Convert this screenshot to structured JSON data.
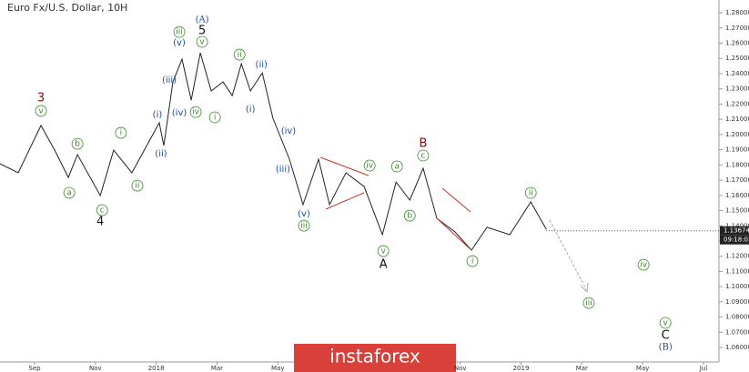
{
  "chart_data": {
    "type": "line",
    "title": "Euro Fx/U.S. Dollar, 10H",
    "color": "#222222",
    "x": [
      -1.14,
      -0.54,
      0.21,
      0.66,
      1.11,
      1.41,
      2.16,
      2.6,
      3.2,
      4.1,
      4.25,
      4.55,
      4.85,
      5.15,
      5.45,
      5.81,
      6.2,
      6.5,
      6.8,
      7.1,
      7.49,
      7.84,
      8.38,
      8.83,
      9.34,
      9.7,
      10.24,
      10.84,
      11.44,
      11.89,
      12.34,
      12.78,
      13.23,
      13.83,
      14.37,
      14.88,
      15.63,
      16.32,
      16.83
    ],
    "values": [
      1.1808,
      1.1748,
      1.2059,
      1.1897,
      1.1718,
      1.1868,
      1.1599,
      1.1897,
      1.1748,
      1.2077,
      1.1927,
      1.2346,
      1.2495,
      1.2226,
      1.2537,
      1.2286,
      1.2346,
      1.2256,
      1.2465,
      1.2286,
      1.2405,
      1.2107,
      1.1838,
      1.1539,
      1.1838,
      1.1539,
      1.1748,
      1.1658,
      1.1342,
      1.1688,
      1.1569,
      1.1778,
      1.1449,
      1.136,
      1.124,
      1.139,
      1.1342,
      1.1557,
      1.1377
    ],
    "last_price": 1.13674,
    "countdown": "09:18:03",
    "watermark": "instaforex",
    "xlim": [
      -1.138,
      22.51
    ],
    "ylim": [
      1.0505,
      1.2884
    ],
    "xticks": [
      {
        "value": 0,
        "label": "Sep"
      },
      {
        "value": 2,
        "label": "Nov"
      },
      {
        "value": 4,
        "label": "2018"
      },
      {
        "value": 6,
        "label": "Mar"
      },
      {
        "value": 8,
        "label": "May"
      },
      {
        "value": 14,
        "label": "Nov"
      },
      {
        "value": 16,
        "label": "2019"
      },
      {
        "value": 18,
        "label": "Mar"
      },
      {
        "value": 20,
        "label": "May"
      },
      {
        "value": 22,
        "label": "Jul"
      }
    ],
    "yticks": [
      {
        "value": 1.06,
        "label": "1.06000"
      },
      {
        "value": 1.07,
        "label": "1.07000"
      },
      {
        "value": 1.08,
        "label": "1.08000"
      },
      {
        "value": 1.09,
        "label": "1.09000"
      },
      {
        "value": 1.1,
        "label": "1.10000"
      },
      {
        "value": 1.11,
        "label": "1.11000"
      },
      {
        "value": 1.12,
        "label": "1.12000"
      },
      {
        "value": 1.13,
        "label": "1.13000"
      },
      {
        "value": 1.14,
        "label": "1.14000"
      },
      {
        "value": 1.15,
        "label": "1.15000"
      },
      {
        "value": 1.16,
        "label": "1.16000"
      },
      {
        "value": 1.17,
        "label": "1.17000"
      },
      {
        "value": 1.18,
        "label": "1.18000"
      },
      {
        "value": 1.19,
        "label": "1.19000"
      },
      {
        "value": 1.2,
        "label": "1.20000"
      },
      {
        "value": 1.21,
        "label": "1.21000"
      },
      {
        "value": 1.22,
        "label": "1.22000"
      },
      {
        "value": 1.23,
        "label": "1.23000"
      },
      {
        "value": 1.24,
        "label": "1.24000"
      },
      {
        "value": 1.25,
        "label": "1.25000"
      },
      {
        "value": 1.26,
        "label": "1.26000"
      },
      {
        "value": 1.27,
        "label": "1.27000"
      },
      {
        "value": 1.28,
        "label": "1.28000"
      }
    ],
    "annotations": [
      {
        "text": "3",
        "x": 0.21,
        "y": 1.2238,
        "color": "#7a1010"
      },
      {
        "text": "v",
        "x": 0.21,
        "y": 1.2155,
        "color": "#3a8a2a"
      },
      {
        "text": "b",
        "x": 1.41,
        "y": 1.1939,
        "color": "#3a8a2a"
      },
      {
        "text": "a",
        "x": 1.14,
        "y": 1.1617,
        "color": "#3a8a2a"
      },
      {
        "text": "c",
        "x": 2.22,
        "y": 1.1503,
        "color": "#3a8a2a"
      },
      {
        "text": "4",
        "x": 2.16,
        "y": 1.1425,
        "color": "#111111"
      },
      {
        "text": "i",
        "x": 2.84,
        "y": 1.2011,
        "color": "#3a8a2a"
      },
      {
        "text": "ii",
        "x": 3.38,
        "y": 1.1664,
        "color": "#3a8a2a"
      },
      {
        "text": "(i)",
        "x": 4.04,
        "y": 1.2131,
        "color": "#1a4fa0"
      },
      {
        "text": "(ii)",
        "x": 4.16,
        "y": 1.1874,
        "color": "#1a4fa0"
      },
      {
        "text": "(iii)",
        "x": 4.43,
        "y": 1.2358,
        "color": "#1a4fa0"
      },
      {
        "text": "(iv)",
        "x": 4.76,
        "y": 1.2143,
        "color": "#1a4fa0"
      },
      {
        "text": "(v)",
        "x": 4.76,
        "y": 1.2603,
        "color": "#1a4fa0"
      },
      {
        "text": "iii",
        "x": 4.76,
        "y": 1.2674,
        "color": "#3a8a2a"
      },
      {
        "text": "(A)",
        "x": 5.51,
        "y": 1.2752,
        "color": "#1a4fa0"
      },
      {
        "text": "5",
        "x": 5.51,
        "y": 1.268,
        "color": "#111111"
      },
      {
        "text": "v",
        "x": 5.51,
        "y": 1.2609,
        "color": "#3a8a2a"
      },
      {
        "text": "iv",
        "x": 5.3,
        "y": 1.2148,
        "color": "#3a8a2a"
      },
      {
        "text": "i",
        "x": 5.93,
        "y": 1.2113,
        "color": "#3a8a2a"
      },
      {
        "text": "ii",
        "x": 6.74,
        "y": 1.2525,
        "color": "#3a8a2a"
      },
      {
        "text": "(ii)",
        "x": 7.46,
        "y": 1.2459,
        "color": "#1a4fa0"
      },
      {
        "text": "(i)",
        "x": 7.1,
        "y": 1.2166,
        "color": "#1a4fa0"
      },
      {
        "text": "(iv)",
        "x": 8.35,
        "y": 1.2023,
        "color": "#1a4fa0"
      },
      {
        "text": "(iii)",
        "x": 8.17,
        "y": 1.1772,
        "color": "#1a4fa0"
      },
      {
        "text": "(v)",
        "x": 8.86,
        "y": 1.1479,
        "color": "#1a4fa0"
      },
      {
        "text": "iii",
        "x": 8.86,
        "y": 1.1401,
        "color": "#3a8a2a"
      },
      {
        "text": "iv",
        "x": 11.02,
        "y": 1.1796,
        "color": "#3a8a2a"
      },
      {
        "text": "a",
        "x": 11.92,
        "y": 1.179,
        "color": "#3a8a2a"
      },
      {
        "text": "b",
        "x": 12.34,
        "y": 1.1467,
        "color": "#3a8a2a"
      },
      {
        "text": "v",
        "x": 11.47,
        "y": 1.1234,
        "color": "#3a8a2a"
      },
      {
        "text": "A",
        "x": 11.47,
        "y": 1.1144,
        "color": "#111111"
      },
      {
        "text": "B",
        "x": 12.78,
        "y": 1.1939,
        "color": "#7a1010"
      },
      {
        "text": "c",
        "x": 12.78,
        "y": 1.1862,
        "color": "#3a8a2a"
      },
      {
        "text": "i",
        "x": 14.4,
        "y": 1.1168,
        "color": "#3a8a2a"
      },
      {
        "text": "ii",
        "x": 16.32,
        "y": 1.1616,
        "color": "#3a8a2a"
      },
      {
        "text": "iii",
        "x": 18.23,
        "y": 1.0893,
        "color": "#3a8a2a"
      },
      {
        "text": "iv",
        "x": 20.03,
        "y": 1.1144,
        "color": "#3a8a2a"
      },
      {
        "text": "v",
        "x": 20.75,
        "y": 1.0762,
        "color": "#3a8a2a"
      },
      {
        "text": "C",
        "x": 20.75,
        "y": 1.0678,
        "color": "#111111"
      },
      {
        "text": "(B)",
        "x": 20.75,
        "y": 1.06,
        "color": "#1a4fa0"
      }
    ]
  }
}
